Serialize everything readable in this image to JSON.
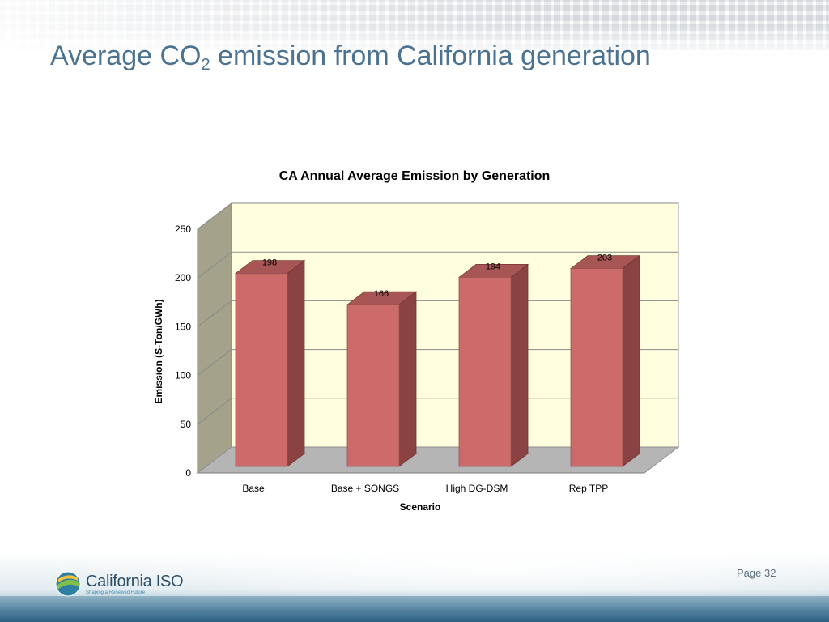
{
  "slide": {
    "title_main": "Average CO",
    "title_sub": "2",
    "title_rest": " emission from California generation",
    "page_label": "Page 32",
    "logo_name": "California ISO",
    "logo_tagline": "Shaping a Renewed Future"
  },
  "chart_data": {
    "type": "bar",
    "title": "CA Annual Average Emission by Generation",
    "xlabel": "Scenario",
    "ylabel": "Emission (S-Ton/GWh)",
    "categories": [
      "Base",
      "Base + SONGS",
      "High DG-DSM",
      "Rep TPP"
    ],
    "values": [
      198,
      166,
      194,
      203
    ],
    "data_labels": [
      "198",
      "166",
      "194",
      "203"
    ],
    "ylim": [
      0,
      250
    ],
    "yticks": [
      0,
      50,
      100,
      150,
      200,
      250
    ],
    "grid": true,
    "legend": "none",
    "style": "3d-column",
    "colors": {
      "bar_front": "#cd6b6a",
      "bar_side": "#8a4342",
      "bar_top": "#a85655",
      "back_wall": "#ffffe0",
      "side_wall": "#a4a28b",
      "floor": "#b5b5b5"
    }
  }
}
